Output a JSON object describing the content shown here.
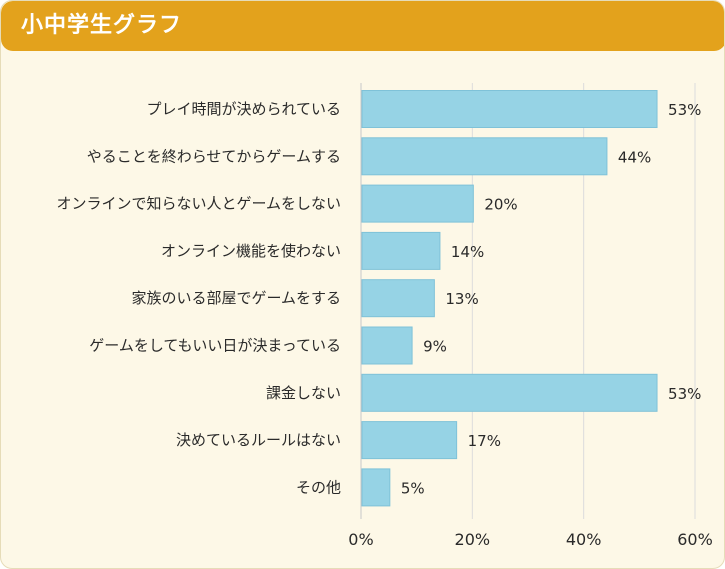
{
  "header": {
    "title": "小中学生グラフ"
  },
  "chart_data": {
    "type": "bar",
    "orientation": "horizontal",
    "title": "小中学生グラフ",
    "categories": [
      "プレイ時間が決められている",
      "やることを終わらせてからゲームする",
      "オンラインで知らない人とゲームをしない",
      "オンライン機能を使わない",
      "家族のいる部屋でゲームをする",
      "ゲームをしてもいい日が決まっている",
      "課金しない",
      "決めているルールはない",
      "その他"
    ],
    "values": [
      53,
      44,
      20,
      14,
      13,
      9,
      53,
      17,
      5
    ],
    "value_labels": [
      "53%",
      "44%",
      "20%",
      "14%",
      "13%",
      "9%",
      "53%",
      "17%",
      "5%"
    ],
    "xlim": [
      0,
      60
    ],
    "xticks": [
      0,
      20,
      40,
      60
    ],
    "xtick_labels": [
      "0%",
      "20%",
      "40%",
      "60%"
    ],
    "grid": true,
    "colors": {
      "bar": "#96d3e5",
      "bar_border": "#7fc2d8",
      "grid": "#dcdcdc",
      "header": "#e3a21c",
      "background": "#fdf8e7"
    }
  }
}
